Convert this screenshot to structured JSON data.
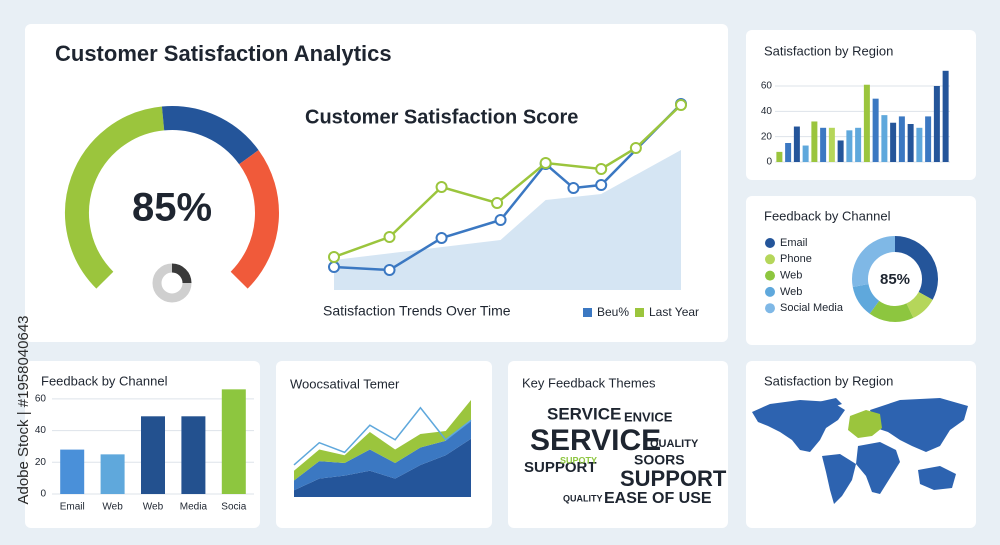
{
  "title": "Customer Satisfaction Analytics",
  "watermark": "Adobe Stock | #1958040643",
  "chart_data": [
    {
      "type": "gauge",
      "label": "85%",
      "values": [
        48,
        22,
        30
      ],
      "colors": [
        "#9bc53d",
        "#24559a",
        "#f05a3a"
      ]
    },
    {
      "type": "donut",
      "values": [
        25,
        75
      ],
      "colors": [
        "#3a3a3a",
        "#cfcfcf"
      ]
    },
    {
      "type": "line",
      "title": "Customer Satisfaction Score",
      "subtitle": "Satisfaction Trends Over Time",
      "xlim": [
        0,
        100
      ],
      "ylim": [
        0,
        100
      ],
      "area": {
        "color": "#d5e5f3",
        "x": [
          0,
          48,
          61,
          77,
          100
        ],
        "values": [
          15,
          25,
          45,
          48,
          70
        ]
      },
      "series": [
        {
          "name": "Beu%",
          "color": "#3b78c2",
          "x": [
            0,
            16,
            31,
            48,
            61,
            69,
            77,
            100
          ],
          "values": [
            11.5,
            10,
            26,
            35,
            63,
            51,
            52.5,
            93
          ]
        },
        {
          "name": "Last Year",
          "color": "#9bc53d",
          "x": [
            0,
            16,
            31,
            47,
            61,
            77,
            87,
            100
          ],
          "values": [
            16.5,
            26.5,
            51.5,
            43.5,
            63.5,
            60.5,
            71,
            92.5
          ]
        }
      ]
    },
    {
      "type": "bar",
      "title": "Satisfaction by Region",
      "ylim": [
        0,
        75
      ],
      "yticks": [
        0,
        20,
        40,
        60
      ],
      "grid": true,
      "values": [
        8,
        15,
        28,
        13,
        32,
        27,
        27,
        17,
        25,
        27,
        61,
        50,
        37,
        31,
        36,
        30,
        27,
        36,
        60,
        72
      ],
      "colors": [
        "#9bc53d",
        "#3b78c2",
        "#24559a",
        "#5fa8dc",
        "#9bc53d",
        "#3b78c2",
        "#b5d65a",
        "#24559a",
        "#5fa8dc",
        "#5fa8dc",
        "#9bc53d",
        "#3b78c2",
        "#5fa8dc",
        "#24559a",
        "#3b78c2",
        "#24559a",
        "#5fa8dc",
        "#3b78c2",
        "#24559a",
        "#24559a"
      ]
    },
    {
      "type": "donut",
      "title": "Feedback by Channel",
      "label": "85%",
      "categories": [
        "Email",
        "Phone",
        "Web",
        "Web",
        "Social Media"
      ],
      "values": [
        33,
        10,
        17,
        12,
        28
      ],
      "colors": [
        "#24559a",
        "#b5d65a",
        "#8dc63f",
        "#5fa8dc",
        "#7fb8e6"
      ]
    },
    {
      "type": "bar",
      "title": "Feedback by Channel",
      "ylim": [
        0,
        70
      ],
      "yticks": [
        0,
        20,
        40,
        60
      ],
      "grid": true,
      "categories": [
        "Email",
        "Web",
        "Web",
        "Media",
        "Socia"
      ],
      "values": [
        28,
        25,
        49,
        49,
        66
      ],
      "colors": [
        "#4a90d9",
        "#5fa8dc",
        "#23518f",
        "#23518f",
        "#8dc63f"
      ]
    },
    {
      "type": "area",
      "title": "Woocsatival Temer",
      "ylim": [
        0,
        100
      ],
      "series": [
        {
          "color": "#24559a",
          "values": [
            7,
            19,
            22,
            27,
            19,
            33,
            43,
            60
          ]
        },
        {
          "color": "#3b78c2",
          "values": [
            10,
            18,
            13,
            22,
            16,
            18,
            15,
            20
          ]
        },
        {
          "color": "#9bc53d",
          "values": [
            10,
            12,
            8,
            18,
            14,
            14,
            10,
            20
          ]
        }
      ],
      "line": {
        "color": "#5fa8dc",
        "values": [
          33,
          56,
          46,
          74,
          59,
          92,
          59,
          79
        ]
      }
    },
    {
      "type": "wordcloud",
      "title": "Key Feedback Themes",
      "words": [
        "SERVICE",
        "ENVICE",
        "SERVICE",
        "QUALITY",
        "SUPPORT",
        "SUPOTY",
        "SOORS",
        "SUPPORT",
        "QUALITY",
        "EASE OF USE"
      ]
    },
    {
      "type": "map",
      "title": "Satisfaction by Region"
    }
  ]
}
